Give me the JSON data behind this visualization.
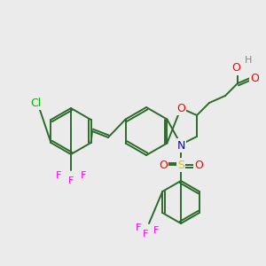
{
  "bg_color": "#ebebeb",
  "bond_color": "#2d6b2d",
  "atom_colors": {
    "O": "#ff0000",
    "N": "#0000ff",
    "S": "#cccc00",
    "Cl": "#00bb00",
    "F": "#ff00ff",
    "H": "#888888",
    "C": "#2d6b2d"
  },
  "figsize": [
    3.0,
    3.0
  ],
  "dpi": 100
}
